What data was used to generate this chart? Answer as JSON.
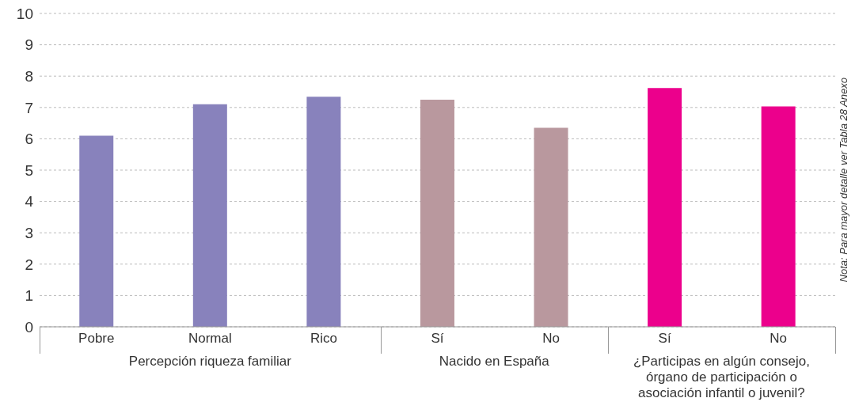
{
  "chart_data": {
    "type": "bar",
    "categories": [
      "Pobre",
      "Normal",
      "Rico",
      "Sí",
      "No",
      "Sí",
      "No"
    ],
    "values": [
      6.1,
      7.1,
      7.34,
      7.25,
      6.35,
      7.62,
      7.03
    ],
    "colors": [
      "#8882bc",
      "#8882bc",
      "#8882bc",
      "#b9989e",
      "#b9989e",
      "#ec008c",
      "#ec008c"
    ],
    "ylim": [
      0,
      10
    ],
    "yticks": [
      0,
      1,
      2,
      3,
      4,
      5,
      6,
      7,
      8,
      9,
      10
    ],
    "grid": "y",
    "annotations": [
      "Percepción riqueza familiar",
      "Nacido en España",
      "¿Participas en algún consejo, órgano de participación o asociación infantil o juvenil?",
      "Nota: Para mayor detalle ver Tabla 28 Anexo"
    ]
  }
}
